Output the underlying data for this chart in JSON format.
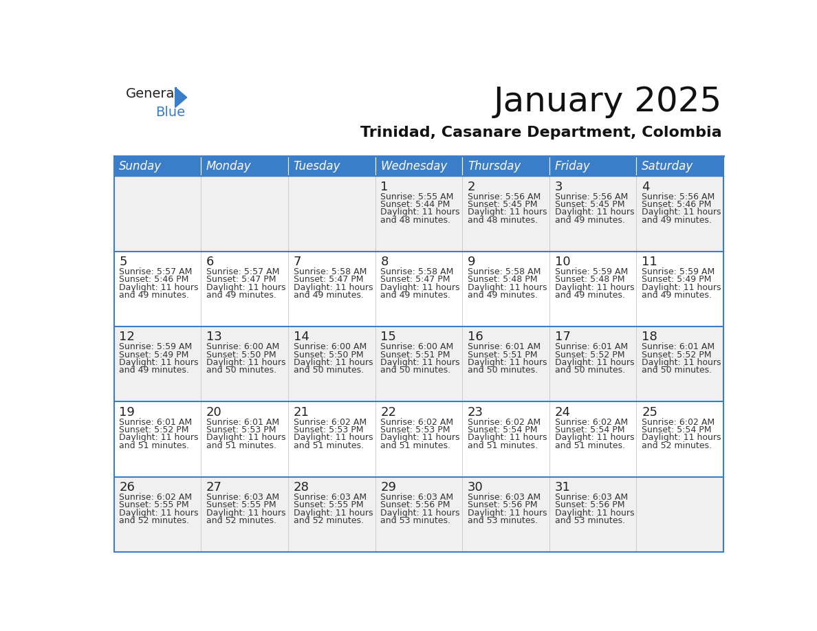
{
  "title": "January 2025",
  "subtitle": "Trinidad, Casanare Department, Colombia",
  "header_color": "#3A7DC9",
  "header_text_color": "#FFFFFF",
  "cell_bg_white": "#FFFFFF",
  "cell_bg_gray": "#F0F0F0",
  "text_color": "#333333",
  "border_color": "#3A7DC9",
  "days_of_week": [
    "Sunday",
    "Monday",
    "Tuesday",
    "Wednesday",
    "Thursday",
    "Friday",
    "Saturday"
  ],
  "weeks": [
    [
      {
        "day": "",
        "lines": []
      },
      {
        "day": "",
        "lines": []
      },
      {
        "day": "",
        "lines": []
      },
      {
        "day": "1",
        "lines": [
          "Sunrise: 5:55 AM",
          "Sunset: 5:44 PM",
          "Daylight: 11 hours",
          "and 48 minutes."
        ]
      },
      {
        "day": "2",
        "lines": [
          "Sunrise: 5:56 AM",
          "Sunset: 5:45 PM",
          "Daylight: 11 hours",
          "and 48 minutes."
        ]
      },
      {
        "day": "3",
        "lines": [
          "Sunrise: 5:56 AM",
          "Sunset: 5:45 PM",
          "Daylight: 11 hours",
          "and 49 minutes."
        ]
      },
      {
        "day": "4",
        "lines": [
          "Sunrise: 5:56 AM",
          "Sunset: 5:46 PM",
          "Daylight: 11 hours",
          "and 49 minutes."
        ]
      }
    ],
    [
      {
        "day": "5",
        "lines": [
          "Sunrise: 5:57 AM",
          "Sunset: 5:46 PM",
          "Daylight: 11 hours",
          "and 49 minutes."
        ]
      },
      {
        "day": "6",
        "lines": [
          "Sunrise: 5:57 AM",
          "Sunset: 5:47 PM",
          "Daylight: 11 hours",
          "and 49 minutes."
        ]
      },
      {
        "day": "7",
        "lines": [
          "Sunrise: 5:58 AM",
          "Sunset: 5:47 PM",
          "Daylight: 11 hours",
          "and 49 minutes."
        ]
      },
      {
        "day": "8",
        "lines": [
          "Sunrise: 5:58 AM",
          "Sunset: 5:47 PM",
          "Daylight: 11 hours",
          "and 49 minutes."
        ]
      },
      {
        "day": "9",
        "lines": [
          "Sunrise: 5:58 AM",
          "Sunset: 5:48 PM",
          "Daylight: 11 hours",
          "and 49 minutes."
        ]
      },
      {
        "day": "10",
        "lines": [
          "Sunrise: 5:59 AM",
          "Sunset: 5:48 PM",
          "Daylight: 11 hours",
          "and 49 minutes."
        ]
      },
      {
        "day": "11",
        "lines": [
          "Sunrise: 5:59 AM",
          "Sunset: 5:49 PM",
          "Daylight: 11 hours",
          "and 49 minutes."
        ]
      }
    ],
    [
      {
        "day": "12",
        "lines": [
          "Sunrise: 5:59 AM",
          "Sunset: 5:49 PM",
          "Daylight: 11 hours",
          "and 49 minutes."
        ]
      },
      {
        "day": "13",
        "lines": [
          "Sunrise: 6:00 AM",
          "Sunset: 5:50 PM",
          "Daylight: 11 hours",
          "and 50 minutes."
        ]
      },
      {
        "day": "14",
        "lines": [
          "Sunrise: 6:00 AM",
          "Sunset: 5:50 PM",
          "Daylight: 11 hours",
          "and 50 minutes."
        ]
      },
      {
        "day": "15",
        "lines": [
          "Sunrise: 6:00 AM",
          "Sunset: 5:51 PM",
          "Daylight: 11 hours",
          "and 50 minutes."
        ]
      },
      {
        "day": "16",
        "lines": [
          "Sunrise: 6:01 AM",
          "Sunset: 5:51 PM",
          "Daylight: 11 hours",
          "and 50 minutes."
        ]
      },
      {
        "day": "17",
        "lines": [
          "Sunrise: 6:01 AM",
          "Sunset: 5:52 PM",
          "Daylight: 11 hours",
          "and 50 minutes."
        ]
      },
      {
        "day": "18",
        "lines": [
          "Sunrise: 6:01 AM",
          "Sunset: 5:52 PM",
          "Daylight: 11 hours",
          "and 50 minutes."
        ]
      }
    ],
    [
      {
        "day": "19",
        "lines": [
          "Sunrise: 6:01 AM",
          "Sunset: 5:52 PM",
          "Daylight: 11 hours",
          "and 51 minutes."
        ]
      },
      {
        "day": "20",
        "lines": [
          "Sunrise: 6:01 AM",
          "Sunset: 5:53 PM",
          "Daylight: 11 hours",
          "and 51 minutes."
        ]
      },
      {
        "day": "21",
        "lines": [
          "Sunrise: 6:02 AM",
          "Sunset: 5:53 PM",
          "Daylight: 11 hours",
          "and 51 minutes."
        ]
      },
      {
        "day": "22",
        "lines": [
          "Sunrise: 6:02 AM",
          "Sunset: 5:53 PM",
          "Daylight: 11 hours",
          "and 51 minutes."
        ]
      },
      {
        "day": "23",
        "lines": [
          "Sunrise: 6:02 AM",
          "Sunset: 5:54 PM",
          "Daylight: 11 hours",
          "and 51 minutes."
        ]
      },
      {
        "day": "24",
        "lines": [
          "Sunrise: 6:02 AM",
          "Sunset: 5:54 PM",
          "Daylight: 11 hours",
          "and 51 minutes."
        ]
      },
      {
        "day": "25",
        "lines": [
          "Sunrise: 6:02 AM",
          "Sunset: 5:54 PM",
          "Daylight: 11 hours",
          "and 52 minutes."
        ]
      }
    ],
    [
      {
        "day": "26",
        "lines": [
          "Sunrise: 6:02 AM",
          "Sunset: 5:55 PM",
          "Daylight: 11 hours",
          "and 52 minutes."
        ]
      },
      {
        "day": "27",
        "lines": [
          "Sunrise: 6:03 AM",
          "Sunset: 5:55 PM",
          "Daylight: 11 hours",
          "and 52 minutes."
        ]
      },
      {
        "day": "28",
        "lines": [
          "Sunrise: 6:03 AM",
          "Sunset: 5:55 PM",
          "Daylight: 11 hours",
          "and 52 minutes."
        ]
      },
      {
        "day": "29",
        "lines": [
          "Sunrise: 6:03 AM",
          "Sunset: 5:56 PM",
          "Daylight: 11 hours",
          "and 53 minutes."
        ]
      },
      {
        "day": "30",
        "lines": [
          "Sunrise: 6:03 AM",
          "Sunset: 5:56 PM",
          "Daylight: 11 hours",
          "and 53 minutes."
        ]
      },
      {
        "day": "31",
        "lines": [
          "Sunrise: 6:03 AM",
          "Sunset: 5:56 PM",
          "Daylight: 11 hours",
          "and 53 minutes."
        ]
      },
      {
        "day": "",
        "lines": []
      }
    ]
  ],
  "title_fontsize": 36,
  "subtitle_fontsize": 16,
  "dayname_fontsize": 12,
  "daynum_fontsize": 13,
  "cell_text_fontsize": 9
}
